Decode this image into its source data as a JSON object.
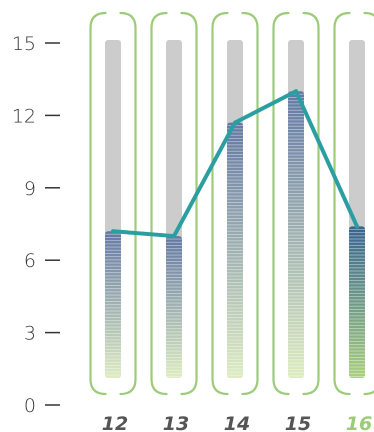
{
  "chart_data": {
    "type": "bar",
    "categories": [
      "12",
      "13",
      "14",
      "15",
      "16"
    ],
    "bar_max": [
      15,
      15,
      15,
      15,
      15
    ],
    "values": [
      7.2,
      7.0,
      11.7,
      13.0,
      7.4
    ],
    "line_values": [
      7.2,
      7.0,
      11.7,
      13.0,
      7.4
    ],
    "highlight_category": "16",
    "yticks": [
      "0",
      "3",
      "6",
      "9",
      "12",
      "15"
    ],
    "ylim": [
      0,
      15
    ],
    "title": "",
    "xlabel": "",
    "ylabel": "",
    "grid": false,
    "legend": "none",
    "colors": {
      "axis_text": "#333333",
      "tick_line": "#333333",
      "x_label": "#555555",
      "x_label_highlight": "#9ccb79",
      "bracket": "#9ccb79",
      "track": "#cccccc",
      "fill_top": "#6277a3",
      "fill_bottom": "#ddecc0",
      "fill_top_highlight": "#37638f",
      "fill_bottom_highlight": "#a9d07f",
      "line": "#2b9ea2"
    }
  }
}
